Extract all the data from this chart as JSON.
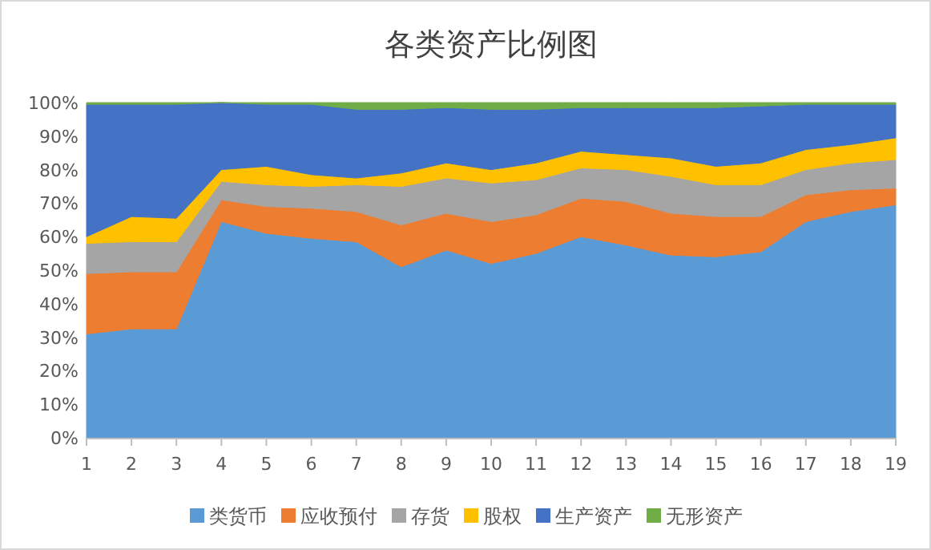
{
  "chart_data": {
    "type": "area",
    "title": "各类资产比例图",
    "stacked": true,
    "legend": "bottom",
    "x": [
      1,
      2,
      3,
      4,
      5,
      6,
      7,
      8,
      9,
      10,
      11,
      12,
      13,
      14,
      15,
      16,
      17,
      18,
      19
    ],
    "xlim": [
      1,
      19
    ],
    "xticks": [
      1,
      2,
      3,
      4,
      5,
      6,
      7,
      8,
      9,
      10,
      11,
      12,
      13,
      14,
      15,
      16,
      17,
      18,
      19
    ],
    "ylim": [
      0,
      100
    ],
    "yticks": [
      {
        "value": 0,
        "label": "0%"
      },
      {
        "value": 10,
        "label": "10%"
      },
      {
        "value": 20,
        "label": "20%"
      },
      {
        "value": 30,
        "label": "30%"
      },
      {
        "value": 40,
        "label": "40%"
      },
      {
        "value": 50,
        "label": "50%"
      },
      {
        "value": 60,
        "label": "60%"
      },
      {
        "value": 70,
        "label": "70%"
      },
      {
        "value": 80,
        "label": "80%"
      },
      {
        "value": 90,
        "label": "90%"
      },
      {
        "value": 100,
        "label": "100%"
      }
    ],
    "series": [
      {
        "name": "类货币",
        "color": "#5b9bd5",
        "values": [
          31,
          32.5,
          32.5,
          64.5,
          61,
          59.5,
          58.5,
          51,
          56,
          52,
          55,
          60,
          57.5,
          54.5,
          54,
          55.5,
          64.5,
          67.5,
          69.5
        ]
      },
      {
        "name": "应收预付",
        "color": "#ed7d31",
        "values": [
          18,
          17,
          17,
          6.5,
          8,
          9,
          9,
          12.5,
          11,
          12.5,
          11.5,
          11.5,
          13,
          12.5,
          12,
          10.5,
          8,
          6.5,
          5
        ]
      },
      {
        "name": "存货",
        "color": "#a5a5a5",
        "values": [
          9,
          9,
          9,
          5.5,
          6.5,
          6.5,
          8,
          11.5,
          10.5,
          11.5,
          10.5,
          9,
          9.5,
          11,
          9.5,
          9.5,
          7.5,
          8,
          8.5
        ]
      },
      {
        "name": "股权",
        "color": "#ffc000",
        "values": [
          2,
          7.5,
          7,
          3.5,
          5.5,
          3.5,
          2,
          4,
          4.5,
          4,
          5,
          5,
          4.5,
          5.5,
          5.5,
          6.5,
          6,
          5.5,
          6.5
        ]
      },
      {
        "name": "生产资产",
        "color": "#4472c4",
        "values": [
          39.5,
          33.5,
          34,
          20,
          18.5,
          21,
          20.5,
          19,
          16.5,
          18,
          16,
          13,
          14,
          15,
          17.5,
          17,
          13.5,
          12,
          10
        ]
      },
      {
        "name": "无形资产",
        "color": "#70ad47",
        "values": [
          0.5,
          0.5,
          0.5,
          0,
          0.5,
          0.5,
          2,
          2,
          1.5,
          2,
          2,
          1.5,
          1.5,
          1.5,
          1.5,
          1,
          0.5,
          0.5,
          0.5
        ]
      }
    ]
  }
}
